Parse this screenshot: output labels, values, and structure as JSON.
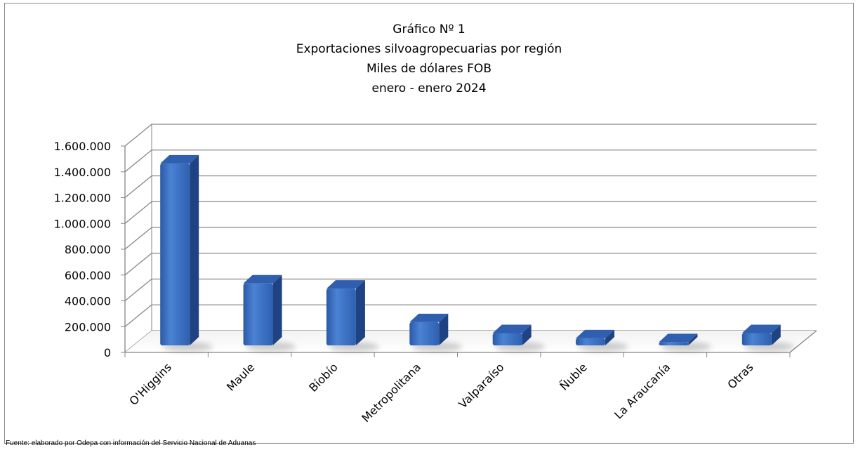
{
  "chart_data": {
    "type": "bar",
    "title": [
      "Gráfico Nº 1",
      "Exportaciones silvoagropecuarias por región",
      "Miles de dólares FOB",
      "enero - enero 2024"
    ],
    "categories": [
      "O'Higgins",
      "Maule",
      "Bíobío",
      "Metropolitana",
      "Valparaíso",
      "Ñuble",
      "La Araucanía",
      "Otras"
    ],
    "values": [
      1410000,
      480000,
      440000,
      180000,
      95000,
      55000,
      25000,
      95000
    ],
    "ylim": [
      0,
      1600000
    ],
    "yticks": [
      "0",
      "200.000",
      "400.000",
      "600.000",
      "800.000",
      "1.000.000",
      "1.200.000",
      "1.400.000",
      "1.600.000"
    ],
    "grid": true,
    "style": "3d-column",
    "bar_color": "#3a6fc4"
  },
  "source_note": "Fuente:  elaborado  por  Odepa con información del Servicio Nacional de Aduanas"
}
